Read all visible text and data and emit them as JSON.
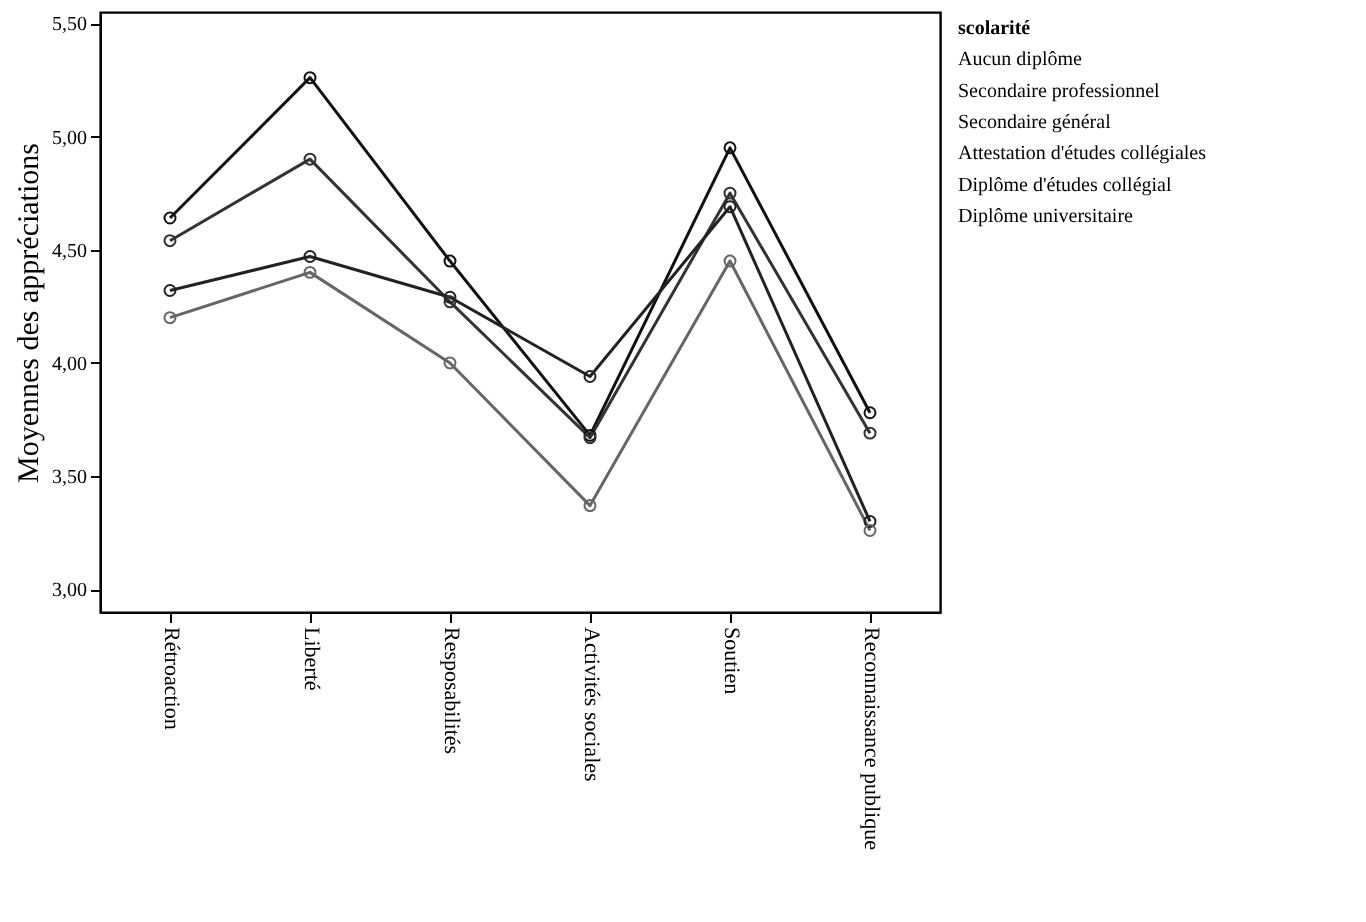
{
  "chart_data": {
    "type": "line",
    "ylabel": "Moyennes des appréciations",
    "legend_title": "scolarité",
    "categories": [
      "Rétroaction",
      "Liberté",
      "Resposabilités",
      "Activités sociales",
      "Soutien",
      "Reconnaissance publique"
    ],
    "series": [
      {
        "color": "#111111",
        "values": [
          4.64,
          5.26,
          4.45,
          3.68,
          4.95,
          3.78
        ]
      },
      {
        "color": "#333333",
        "values": [
          4.54,
          4.9,
          4.27,
          3.67,
          4.75,
          3.69
        ]
      },
      {
        "color": "#222222",
        "values": [
          4.32,
          4.47,
          4.29,
          3.94,
          4.69,
          3.3
        ]
      },
      {
        "color": "#666666",
        "values": [
          4.2,
          4.4,
          4.0,
          3.37,
          4.45,
          3.26
        ]
      }
    ],
    "ylim": [
      2.9,
      5.55
    ],
    "yticks": [
      {
        "value": 3.0,
        "label": "3,00"
      },
      {
        "value": 3.5,
        "label": "3,50"
      },
      {
        "value": 4.0,
        "label": "4,00"
      },
      {
        "value": 4.5,
        "label": "4,50"
      },
      {
        "value": 5.0,
        "label": "5,00"
      },
      {
        "value": 5.5,
        "label": "5,50"
      }
    ],
    "grid": false,
    "marker": "circle",
    "line_style": "solid",
    "annotations": [
      "Aucun diplôme",
      "Secondaire professionnel",
      "Secondaire général",
      "Attestation d'études collégiales",
      "Diplôme d'études collégial",
      "Diplôme universitaire"
    ]
  }
}
